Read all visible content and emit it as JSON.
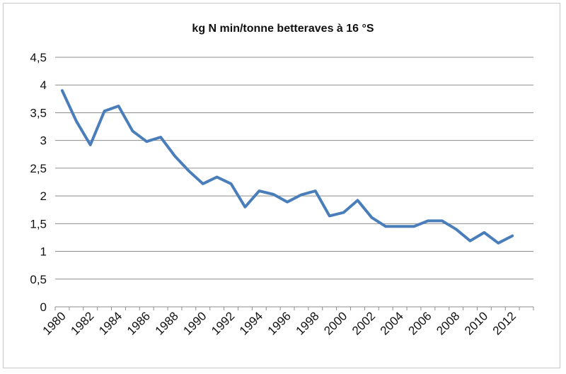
{
  "chart_data": {
    "type": "line",
    "title": "kg N min/tonne betteraves à 16 °S",
    "xlabel": "",
    "ylabel": "",
    "x": [
      1980,
      1981,
      1982,
      1983,
      1984,
      1985,
      1986,
      1987,
      1988,
      1989,
      1990,
      1991,
      1992,
      1993,
      1994,
      1995,
      1996,
      1997,
      1998,
      1999,
      2000,
      2001,
      2002,
      2003,
      2004,
      2005,
      2006,
      2007,
      2008,
      2009,
      2010,
      2011,
      2012
    ],
    "series": [
      {
        "values": [
          3.9,
          3.35,
          2.92,
          3.53,
          3.62,
          3.17,
          2.98,
          3.06,
          2.72,
          2.45,
          2.22,
          2.34,
          2.22,
          1.8,
          2.09,
          2.03,
          1.89,
          2.02,
          2.09,
          1.64,
          1.7,
          1.92,
          1.61,
          1.45,
          1.45,
          1.45,
          1.55,
          1.55,
          1.4,
          1.19,
          1.34,
          1.15,
          1.28
        ]
      }
    ],
    "ylim": [
      0,
      4.5
    ],
    "yticks": [
      "0",
      "0,5",
      "1",
      "1,5",
      "2",
      "2,5",
      "3",
      "3,5",
      "4",
      "4,5"
    ],
    "xticks": [
      "1980",
      "1982",
      "1984",
      "1986",
      "1988",
      "1990",
      "1992",
      "1994",
      "1996",
      "1998",
      "2000",
      "2002",
      "2004",
      "2006",
      "2008",
      "2010",
      "2012"
    ],
    "grid": "horizontal",
    "legend": "none",
    "line_color": "#4a7ebb",
    "grid_color": "#8c8c8c"
  }
}
